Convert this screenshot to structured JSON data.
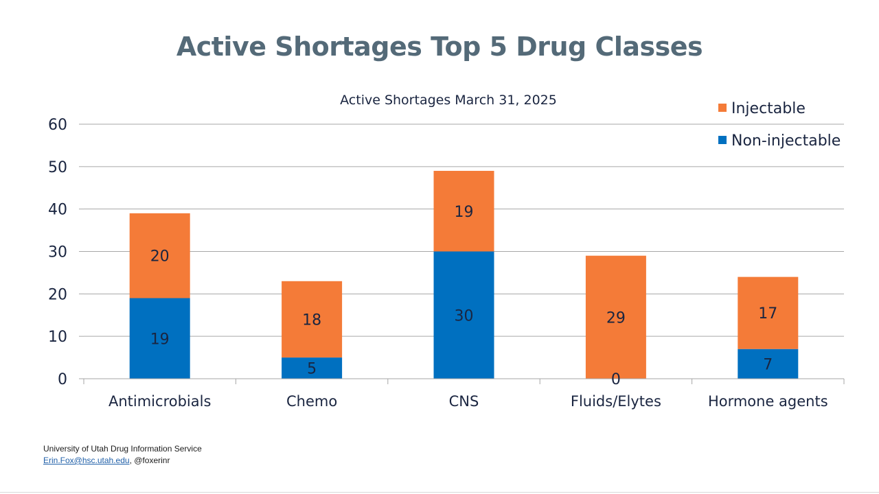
{
  "slide": {
    "title": "Active Shortages Top 5 Drug Classes"
  },
  "footer": {
    "org": "University of Utah Drug Information Service",
    "email": "Erin.Fox@hsc.utah.edu",
    "separator": ", ",
    "handle": "@foxerinr"
  },
  "chart_data": {
    "type": "bar",
    "stacked": true,
    "title": "Active Shortages March 31, 2025",
    "xlabel": "",
    "ylabel": "",
    "categories": [
      "Antimicrobials",
      "Chemo",
      "CNS",
      "Fluids/Elytes",
      "Hormone agents"
    ],
    "series": [
      {
        "name": "Non-injectable",
        "values": [
          19,
          5,
          30,
          0,
          7
        ],
        "color": "#0070c0"
      },
      {
        "name": "Injectable",
        "values": [
          20,
          18,
          19,
          29,
          17
        ],
        "color": "#f47b38"
      }
    ],
    "ylim": [
      0,
      60
    ],
    "yticks": [
      0,
      10,
      20,
      30,
      40,
      50,
      60
    ],
    "legend": [
      "Injectable",
      "Non-injectable"
    ],
    "legend_position": "top-right",
    "grid": true
  }
}
